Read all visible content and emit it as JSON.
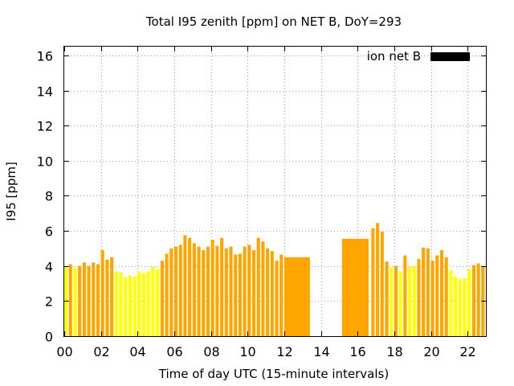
{
  "chart_data": {
    "type": "bar",
    "title": "Total I95 zenith [ppm] on NET B, DoY=293",
    "xlabel": "Time of day UTC (15-minute intervals)",
    "ylabel": "I95 [ppm]",
    "xlim": [
      0,
      23
    ],
    "ylim": [
      0,
      16.5
    ],
    "xticks": [
      0,
      2,
      4,
      6,
      8,
      10,
      12,
      14,
      16,
      18,
      20,
      22
    ],
    "xtick_labels": [
      "00",
      "02",
      "04",
      "06",
      "08",
      "10",
      "12",
      "14",
      "16",
      "18",
      "20",
      "22"
    ],
    "yticks": [
      0,
      2,
      4,
      6,
      8,
      10,
      12,
      14,
      16
    ],
    "ytick_labels": [
      "0",
      "2",
      "4",
      "6",
      "8",
      "10",
      "12",
      "14",
      "16"
    ],
    "grid": true,
    "legend": {
      "label": "ion net B",
      "color": "#000000",
      "placement": "top-right"
    },
    "colors": {
      "orange": "#ffa500",
      "yellow": "#ffff00"
    },
    "bars": [
      {
        "x": 0.0,
        "w": 0.25,
        "value": 4.0,
        "color": "yellow"
      },
      {
        "x": 0.25,
        "w": 0.25,
        "value": 4.1,
        "color": "orange"
      },
      {
        "x": 0.5,
        "w": 0.25,
        "value": 3.9,
        "color": "yellow"
      },
      {
        "x": 0.75,
        "w": 0.25,
        "value": 4.0,
        "color": "orange"
      },
      {
        "x": 1.0,
        "w": 0.25,
        "value": 4.2,
        "color": "orange"
      },
      {
        "x": 1.25,
        "w": 0.25,
        "value": 4.0,
        "color": "orange"
      },
      {
        "x": 1.5,
        "w": 0.25,
        "value": 4.2,
        "color": "orange"
      },
      {
        "x": 1.75,
        "w": 0.25,
        "value": 4.1,
        "color": "orange"
      },
      {
        "x": 2.0,
        "w": 0.25,
        "value": 4.9,
        "color": "orange"
      },
      {
        "x": 2.25,
        "w": 0.25,
        "value": 4.35,
        "color": "orange"
      },
      {
        "x": 2.5,
        "w": 0.25,
        "value": 4.5,
        "color": "orange"
      },
      {
        "x": 2.75,
        "w": 0.25,
        "value": 3.7,
        "color": "yellow"
      },
      {
        "x": 3.0,
        "w": 0.25,
        "value": 3.65,
        "color": "yellow"
      },
      {
        "x": 3.25,
        "w": 0.25,
        "value": 3.35,
        "color": "yellow"
      },
      {
        "x": 3.5,
        "w": 0.25,
        "value": 3.45,
        "color": "yellow"
      },
      {
        "x": 3.75,
        "w": 0.25,
        "value": 3.4,
        "color": "yellow"
      },
      {
        "x": 4.0,
        "w": 0.25,
        "value": 3.7,
        "color": "yellow"
      },
      {
        "x": 4.25,
        "w": 0.25,
        "value": 3.6,
        "color": "yellow"
      },
      {
        "x": 4.5,
        "w": 0.25,
        "value": 3.7,
        "color": "yellow"
      },
      {
        "x": 4.75,
        "w": 0.25,
        "value": 3.95,
        "color": "yellow"
      },
      {
        "x": 5.0,
        "w": 0.25,
        "value": 3.8,
        "color": "yellow"
      },
      {
        "x": 5.25,
        "w": 0.25,
        "value": 4.3,
        "color": "orange"
      },
      {
        "x": 5.5,
        "w": 0.25,
        "value": 4.7,
        "color": "orange"
      },
      {
        "x": 5.75,
        "w": 0.25,
        "value": 5.0,
        "color": "orange"
      },
      {
        "x": 6.0,
        "w": 0.25,
        "value": 5.1,
        "color": "orange"
      },
      {
        "x": 6.25,
        "w": 0.25,
        "value": 5.2,
        "color": "orange"
      },
      {
        "x": 6.5,
        "w": 0.25,
        "value": 5.75,
        "color": "orange"
      },
      {
        "x": 6.75,
        "w": 0.25,
        "value": 5.6,
        "color": "orange"
      },
      {
        "x": 7.0,
        "w": 0.25,
        "value": 5.3,
        "color": "orange"
      },
      {
        "x": 7.25,
        "w": 0.25,
        "value": 5.1,
        "color": "orange"
      },
      {
        "x": 7.5,
        "w": 0.25,
        "value": 4.9,
        "color": "orange"
      },
      {
        "x": 7.75,
        "w": 0.25,
        "value": 5.1,
        "color": "orange"
      },
      {
        "x": 8.0,
        "w": 0.25,
        "value": 5.5,
        "color": "orange"
      },
      {
        "x": 8.25,
        "w": 0.25,
        "value": 5.15,
        "color": "orange"
      },
      {
        "x": 8.5,
        "w": 0.25,
        "value": 5.6,
        "color": "orange"
      },
      {
        "x": 8.75,
        "w": 0.25,
        "value": 5.0,
        "color": "orange"
      },
      {
        "x": 9.0,
        "w": 0.25,
        "value": 5.1,
        "color": "orange"
      },
      {
        "x": 9.25,
        "w": 0.25,
        "value": 4.65,
        "color": "orange"
      },
      {
        "x": 9.5,
        "w": 0.25,
        "value": 4.7,
        "color": "orange"
      },
      {
        "x": 9.75,
        "w": 0.25,
        "value": 5.1,
        "color": "orange"
      },
      {
        "x": 10.0,
        "w": 0.25,
        "value": 5.2,
        "color": "orange"
      },
      {
        "x": 10.25,
        "w": 0.25,
        "value": 4.9,
        "color": "orange"
      },
      {
        "x": 10.5,
        "w": 0.25,
        "value": 5.6,
        "color": "orange"
      },
      {
        "x": 10.75,
        "w": 0.25,
        "value": 5.4,
        "color": "orange"
      },
      {
        "x": 11.0,
        "w": 0.25,
        "value": 5.0,
        "color": "orange"
      },
      {
        "x": 11.25,
        "w": 0.25,
        "value": 4.85,
        "color": "orange"
      },
      {
        "x": 11.5,
        "w": 0.25,
        "value": 4.3,
        "color": "orange"
      },
      {
        "x": 11.75,
        "w": 0.25,
        "value": 4.65,
        "color": "orange"
      },
      {
        "x": 12.0,
        "w": 1.4,
        "value": 4.5,
        "color": "orange"
      },
      {
        "x": 15.15,
        "w": 1.45,
        "value": 5.55,
        "color": "orange"
      },
      {
        "x": 16.75,
        "w": 0.25,
        "value": 6.15,
        "color": "orange"
      },
      {
        "x": 17.0,
        "w": 0.25,
        "value": 6.45,
        "color": "orange"
      },
      {
        "x": 17.25,
        "w": 0.25,
        "value": 5.95,
        "color": "orange"
      },
      {
        "x": 17.5,
        "w": 0.25,
        "value": 4.25,
        "color": "orange"
      },
      {
        "x": 17.75,
        "w": 0.25,
        "value": 3.9,
        "color": "yellow"
      },
      {
        "x": 18.0,
        "w": 0.25,
        "value": 4.0,
        "color": "orange"
      },
      {
        "x": 18.25,
        "w": 0.25,
        "value": 3.7,
        "color": "yellow"
      },
      {
        "x": 18.5,
        "w": 0.25,
        "value": 4.6,
        "color": "orange"
      },
      {
        "x": 18.75,
        "w": 0.25,
        "value": 3.95,
        "color": "yellow"
      },
      {
        "x": 19.0,
        "w": 0.25,
        "value": 4.0,
        "color": "yellow"
      },
      {
        "x": 19.25,
        "w": 0.25,
        "value": 4.4,
        "color": "orange"
      },
      {
        "x": 19.5,
        "w": 0.25,
        "value": 5.05,
        "color": "orange"
      },
      {
        "x": 19.75,
        "w": 0.25,
        "value": 5.0,
        "color": "orange"
      },
      {
        "x": 20.0,
        "w": 0.25,
        "value": 4.3,
        "color": "orange"
      },
      {
        "x": 20.25,
        "w": 0.25,
        "value": 4.6,
        "color": "orange"
      },
      {
        "x": 20.5,
        "w": 0.25,
        "value": 4.9,
        "color": "orange"
      },
      {
        "x": 20.75,
        "w": 0.25,
        "value": 4.5,
        "color": "orange"
      },
      {
        "x": 21.0,
        "w": 0.25,
        "value": 3.75,
        "color": "yellow"
      },
      {
        "x": 21.25,
        "w": 0.25,
        "value": 3.4,
        "color": "yellow"
      },
      {
        "x": 21.5,
        "w": 0.25,
        "value": 3.25,
        "color": "yellow"
      },
      {
        "x": 21.75,
        "w": 0.25,
        "value": 3.3,
        "color": "yellow"
      },
      {
        "x": 22.0,
        "w": 0.25,
        "value": 3.8,
        "color": "yellow"
      },
      {
        "x": 22.25,
        "w": 0.25,
        "value": 4.05,
        "color": "orange"
      },
      {
        "x": 22.5,
        "w": 0.25,
        "value": 4.15,
        "color": "orange"
      },
      {
        "x": 22.75,
        "w": 0.25,
        "value": 4.0,
        "color": "orange"
      }
    ]
  }
}
